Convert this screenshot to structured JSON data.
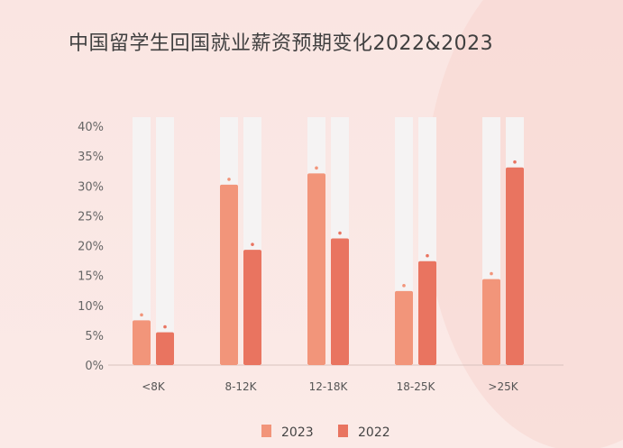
{
  "title": "中国留学生回国就业薪资预期变化2022&2023",
  "chart_data": {
    "type": "bar",
    "title": "中国留学生回国就业薪资预期变化2022&2023",
    "categories": [
      "<8K",
      "8-12K",
      "12-18K",
      "18-25K",
      ">25K"
    ],
    "series": [
      {
        "name": "2023",
        "values": [
          7.5,
          30.2,
          32.1,
          12.4,
          14.4
        ],
        "color": "#f2957a"
      },
      {
        "name": "2022",
        "values": [
          5.5,
          19.3,
          21.2,
          17.4,
          33.1
        ],
        "color": "#e97460"
      }
    ],
    "ylim": [
      0,
      40
    ],
    "yticks": [
      "0%",
      "5%",
      "10%",
      "15%",
      "20%",
      "25%",
      "30%",
      "35%",
      "40%"
    ],
    "xlabel": "",
    "ylabel": "",
    "grid": false,
    "legend_position": "bottom"
  }
}
